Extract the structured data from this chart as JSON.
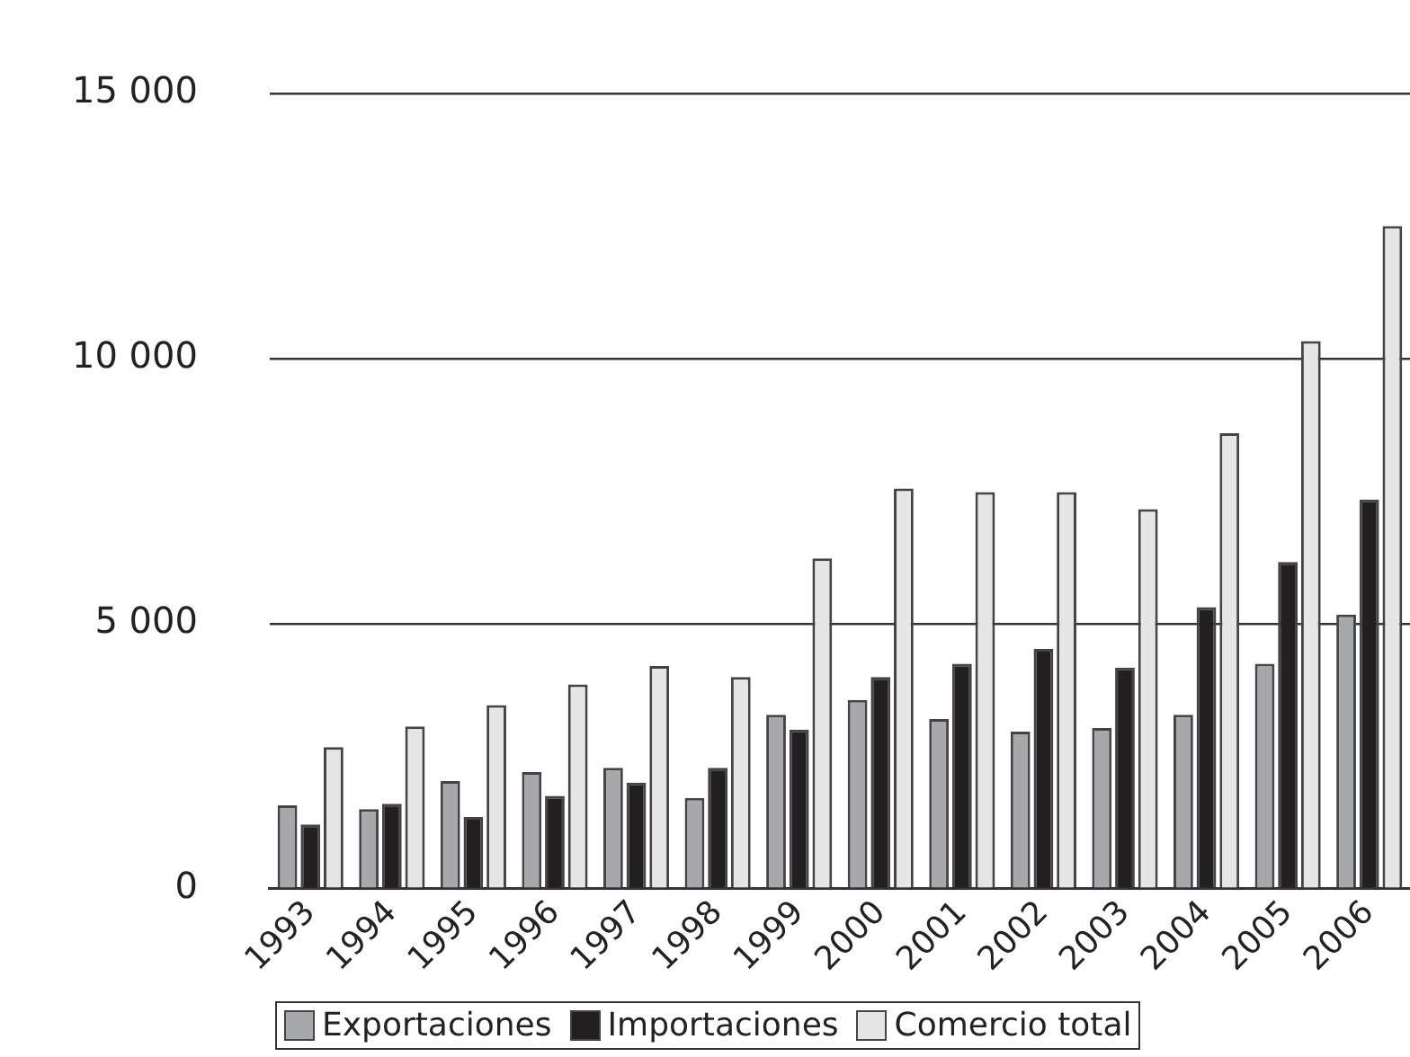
{
  "chart_data": {
    "type": "bar",
    "categories": [
      "1993",
      "1994",
      "1995",
      "1996",
      "1997",
      "1998",
      "1999",
      "2000",
      "2001",
      "2002",
      "2003",
      "2004",
      "2005",
      "2006"
    ],
    "series": [
      {
        "name": "Exportaciones",
        "color": "#a7a8ab",
        "values": [
          1570,
          1500,
          2030,
          2200,
          2280,
          1710,
          3280,
          3560,
          3200,
          2960,
          3030,
          3280,
          4240,
          5170
        ]
      },
      {
        "name": "Importaciones",
        "color": "#231f20",
        "values": [
          1210,
          1600,
          1350,
          1750,
          2000,
          2280,
          3000,
          3990,
          4240,
          4520,
          4170,
          5310,
          6160,
          7340
        ]
      },
      {
        "name": "Comercio total",
        "color": "#e6e6e7",
        "values": [
          2670,
          3060,
          3460,
          3850,
          4200,
          3990,
          6230,
          7550,
          7480,
          7480,
          7160,
          8590,
          10330,
          12500
        ]
      }
    ],
    "ylim": [
      0,
      15000
    ],
    "yticks": [
      {
        "value": 0,
        "label": "0"
      },
      {
        "value": 5000,
        "label": "5 000"
      },
      {
        "value": 10000,
        "label": "10 000"
      },
      {
        "value": 15000,
        "label": "15 000"
      }
    ],
    "grid": "y",
    "legend": "bottom"
  }
}
